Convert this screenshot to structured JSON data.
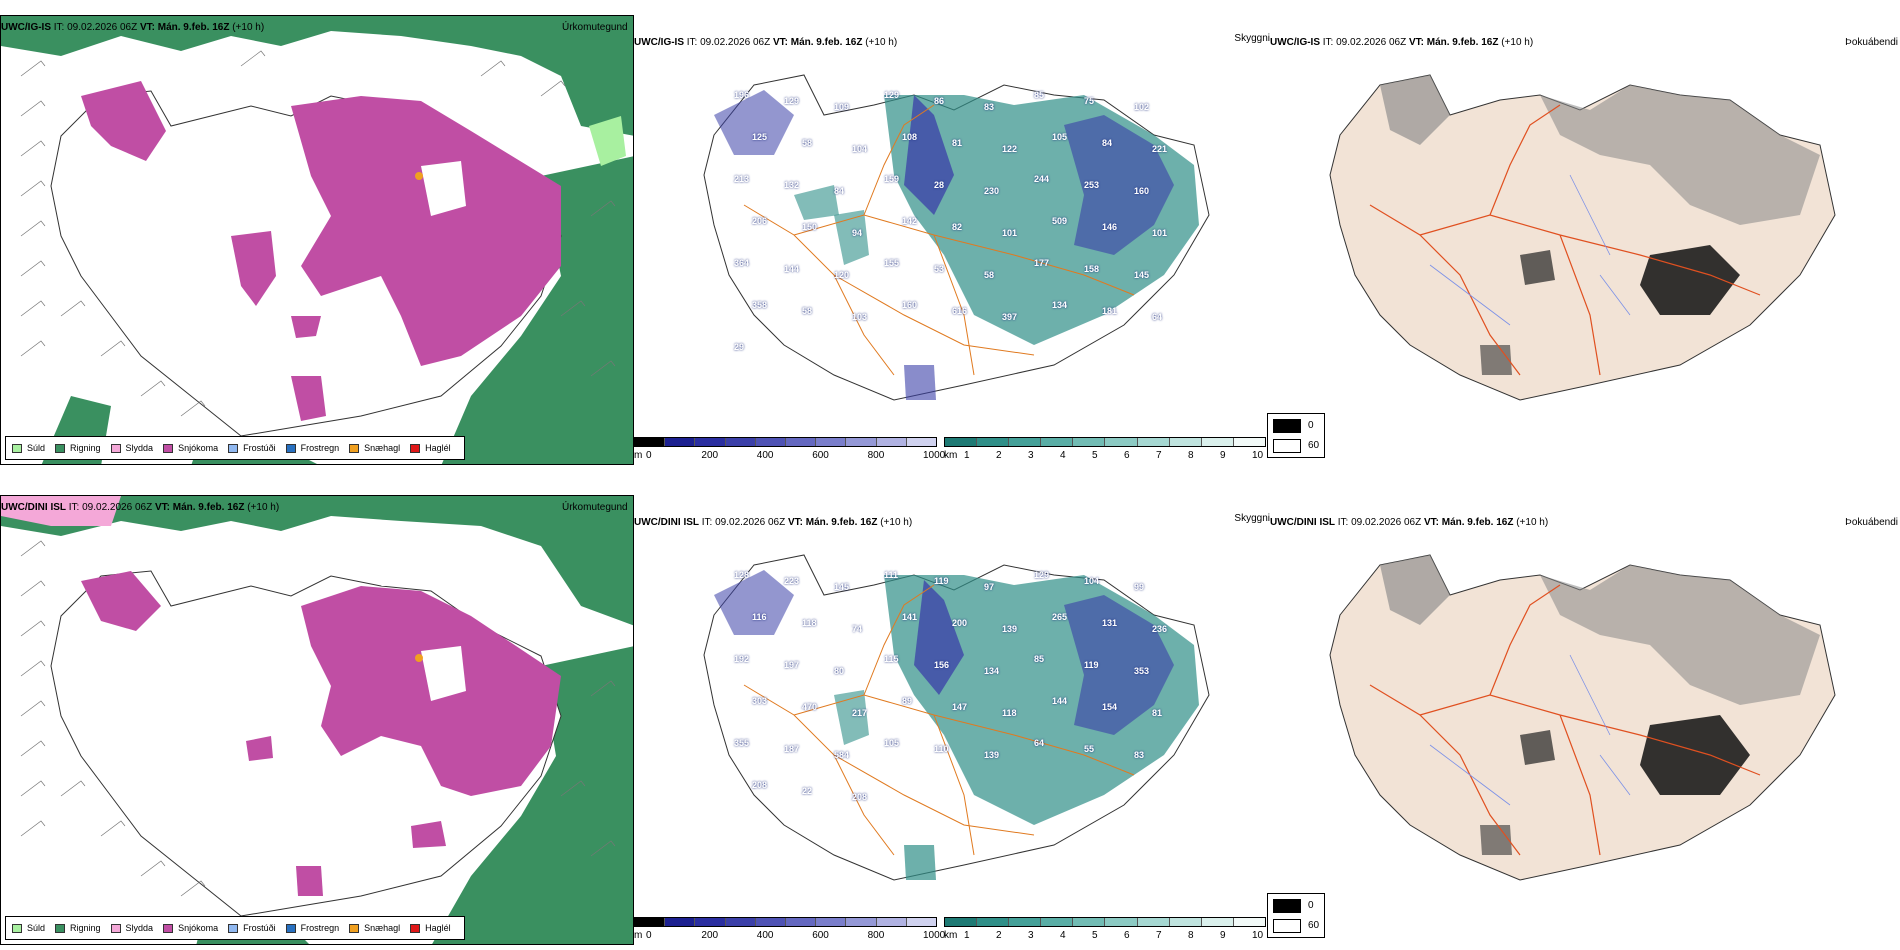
{
  "panels_top": {
    "model": "UWC/IG-IS",
    "it_label": "IT:",
    "it_value": "09.02.2026 06Z",
    "vt_label": "VT:",
    "vt_value": "Mán. 9.feb. 16Z",
    "lead": "(+10 h)",
    "precip_title": "Úrkomutegund",
    "cloud_title": "Skyggni",
    "fog_title": "Þokuábendi",
    "numbers": [
      "196",
      "129",
      "109",
      "129",
      "86",
      "83",
      "85",
      "75",
      "102",
      "125",
      "58",
      "104",
      "108",
      "81",
      "122",
      "105",
      "84",
      "221",
      "213",
      "132",
      "84",
      "159",
      "28",
      "230",
      "244",
      "253",
      "160",
      "206",
      "150",
      "94",
      "142",
      "82",
      "101",
      "509",
      "146",
      "101",
      "364",
      "144",
      "120",
      "155",
      "53",
      "58",
      "177",
      "158",
      "145",
      "358",
      "58",
      "103",
      "160",
      "616",
      "397",
      "134",
      "181",
      "64",
      "29"
    ]
  },
  "panels_bottom": {
    "model": "UWC/DINI ISL",
    "it_label": "IT:",
    "it_value": "09.02.2026 06Z",
    "vt_label": "VT:",
    "vt_value": "Mán. 9.feb. 16Z",
    "lead": "(+10 h)",
    "precip_title": "Úrkomutegund",
    "cloud_title": "Skyggni",
    "fog_title": "Þokuábendi",
    "numbers": [
      "128",
      "223",
      "145",
      "111",
      "119",
      "97",
      "129",
      "104",
      "99",
      "116",
      "118",
      "74",
      "141",
      "200",
      "139",
      "265",
      "131",
      "236",
      "192",
      "197",
      "80",
      "115",
      "156",
      "134",
      "85",
      "119",
      "353",
      "303",
      "470",
      "217",
      "89",
      "147",
      "118",
      "144",
      "154",
      "81",
      "355",
      "187",
      "584",
      "105",
      "110",
      "139",
      "64",
      "55",
      "83",
      "208",
      "22",
      "208"
    ]
  },
  "legend_precip": [
    {
      "label": "Súld",
      "color": "#a8f0a0"
    },
    {
      "label": "Rigning",
      "color": "#3a9060"
    },
    {
      "label": "Slydda",
      "color": "#f4a8d8"
    },
    {
      "label": "Snjókoma",
      "color": "#c04ea4"
    },
    {
      "label": "Frostúði",
      "color": "#90b8f0"
    },
    {
      "label": "Frostregn",
      "color": "#2870c0"
    },
    {
      "label": "Snæhagl",
      "color": "#f0a020"
    },
    {
      "label": "Haglél",
      "color": "#e01818"
    }
  ],
  "scale_m": {
    "unit": "m",
    "ticks": [
      "0",
      "200",
      "400",
      "600",
      "800",
      "1000"
    ]
  },
  "scale_km": {
    "unit": "km",
    "ticks": [
      "1",
      "2",
      "3",
      "4",
      "5",
      "6",
      "7",
      "8",
      "9",
      "10"
    ]
  },
  "fog_legend": {
    "dark": "0",
    "light": "60"
  },
  "colors": {
    "rain": "#3a9060",
    "snow": "#c04ea4",
    "land": "#f2e3d6",
    "cloud_teal": "#2f8f88",
    "cloud_blue": "#3b3fa8",
    "road": "#e06020",
    "river": "#7b90e8"
  }
}
